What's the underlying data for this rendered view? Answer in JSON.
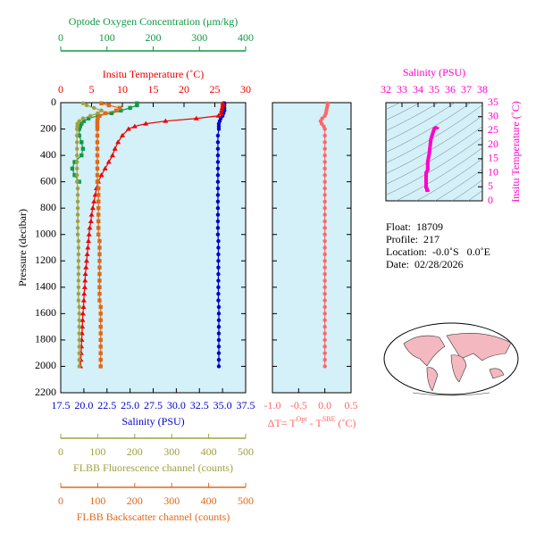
{
  "chart_data": [
    {
      "type": "profile",
      "ylabel": "Pressure (decibar)",
      "ylim": [
        0,
        2200
      ],
      "y_inverted": true,
      "yticks": [
        0,
        200,
        400,
        600,
        800,
        1000,
        1200,
        1400,
        1600,
        1800,
        2000,
        2200
      ],
      "y": [
        5,
        20,
        40,
        60,
        80,
        100,
        120,
        140,
        160,
        180,
        200,
        250,
        300,
        350,
        400,
        450,
        500,
        550,
        600,
        650,
        700,
        750,
        800,
        850,
        900,
        950,
        1000,
        1050,
        1100,
        1150,
        1200,
        1250,
        1300,
        1350,
        1400,
        1450,
        1500,
        1550,
        1600,
        1650,
        1700,
        1750,
        1800,
        1850,
        1900,
        1950,
        2000
      ],
      "xlabel": "Salinity (PSU)",
      "xlim": [
        17.5,
        37.5
      ],
      "xticks": [
        17.5,
        {
          "value": 20,
          "label": "20.0"
        },
        22.5,
        {
          "value": 25,
          "label": "25.0"
        },
        27.5,
        {
          "value": 30,
          "label": "30.0"
        },
        32.5,
        {
          "value": 35,
          "label": "35.0"
        },
        37.5
      ],
      "x2label": "Insitu Temperature (˚C)",
      "x2lim": [
        0,
        30
      ],
      "x2ticks": [
        0,
        5,
        10,
        15,
        20,
        25,
        30
      ],
      "x3label": "Optode Oxygen Concentration (μm/kg)",
      "x3lim": [
        0,
        400
      ],
      "x3ticks": [
        0,
        100,
        200,
        300,
        400
      ],
      "x4label": "FLBB Fluorescence channel (counts)",
      "x4lim": [
        0,
        500
      ],
      "x4ticks": [
        0,
        100,
        200,
        300,
        400,
        500
      ],
      "x5label": "FLBB Backscatter channel (counts)",
      "x5lim": [
        0,
        500
      ],
      "x5ticks": [
        0,
        100,
        200,
        300,
        400,
        500
      ],
      "series": [
        {
          "axis": "x",
          "color": "#0000cc",
          "marker": "circle",
          "values": [
            35.2,
            35.2,
            35.2,
            35.2,
            35.1,
            35.0,
            34.8,
            34.7,
            34.6,
            34.6,
            34.6,
            34.5,
            34.5,
            34.5,
            34.5,
            34.5,
            34.5,
            34.5,
            34.5,
            34.5,
            34.5,
            34.5,
            34.5,
            34.5,
            34.5,
            34.5,
            34.5,
            34.55,
            34.55,
            34.55,
            34.55,
            34.55,
            34.55,
            34.55,
            34.55,
            34.55,
            34.55,
            34.6,
            34.6,
            34.6,
            34.6,
            34.6,
            34.6,
            34.6,
            34.6,
            34.6,
            34.6
          ]
        },
        {
          "axis": "x2",
          "color": "#ee0000",
          "marker": "triangle",
          "values": [
            26.3,
            26.3,
            26.2,
            26.1,
            26.0,
            25.6,
            22.0,
            17.0,
            13.8,
            12.0,
            11.0,
            10.0,
            9.3,
            8.8,
            8.4,
            7.8,
            7.2,
            6.6,
            6.1,
            5.8,
            5.6,
            5.4,
            5.2,
            5.0,
            4.9,
            4.7,
            4.6,
            4.5,
            4.4,
            4.3,
            4.2,
            4.1,
            4.0,
            3.95,
            3.9,
            3.8,
            3.75,
            3.7,
            3.6,
            3.55,
            3.5,
            3.45,
            3.4,
            3.35,
            3.3,
            3.25,
            3.2
          ]
        },
        {
          "axis": "x3",
          "color": "#119944",
          "marker": "square",
          "values": [
            165,
            165,
            150,
            130,
            110,
            80,
            60,
            50,
            45,
            42,
            40,
            40,
            45,
            48,
            45,
            30,
            25,
            30,
            40,
            null,
            null,
            null,
            null,
            null,
            null,
            null,
            null,
            null,
            null,
            null,
            null,
            null,
            null,
            null,
            null,
            null,
            null,
            null,
            null,
            null,
            null,
            null,
            null,
            null,
            null,
            null,
            null
          ]
        },
        {
          "axis": "x4",
          "color": "#a0a040",
          "marker": "circle",
          "values": [
            60,
            70,
            90,
            110,
            100,
            80,
            60,
            50,
            45,
            45,
            44,
            44,
            44,
            44,
            44,
            44,
            44,
            44,
            44,
            46,
            46,
            46,
            46,
            46,
            46,
            46,
            46,
            48,
            48,
            48,
            48,
            48,
            48,
            48,
            48,
            48,
            48,
            50,
            50,
            50,
            50,
            50,
            50,
            50,
            50,
            50,
            50
          ]
        },
        {
          "axis": "x5",
          "color": "#e06818",
          "marker": "square",
          "values": [
            110,
            130,
            160,
            150,
            120,
            105,
            100,
            99,
            99,
            99,
            99,
            99,
            99,
            99,
            99,
            99,
            99,
            99,
            99,
            102,
            102,
            102,
            102,
            102,
            102,
            102,
            102,
            105,
            105,
            105,
            105,
            105,
            105,
            105,
            105,
            105,
            105,
            108,
            108,
            108,
            108,
            108,
            108,
            108,
            108,
            108,
            108
          ]
        }
      ]
    },
    {
      "type": "profile",
      "ylim": [
        0,
        2200
      ],
      "y_inverted": true,
      "ytick_labels": false,
      "yticks": [
        0,
        200,
        400,
        600,
        800,
        1000,
        1200,
        1400,
        1600,
        1800,
        2000,
        2200
      ],
      "y": [
        5,
        20,
        40,
        60,
        80,
        100,
        120,
        140,
        160,
        180,
        200,
        250,
        300,
        350,
        400,
        450,
        500,
        550,
        600,
        650,
        700,
        750,
        800,
        850,
        900,
        950,
        1000,
        1050,
        1100,
        1150,
        1200,
        1250,
        1300,
        1350,
        1400,
        1450,
        1500,
        1550,
        1600,
        1650,
        1700,
        1750,
        1800,
        1850,
        1900,
        1950,
        2000
      ],
      "xlabel": [
        "ΔT= T",
        "Opt",
        " - T",
        "SBE",
        " (˚C)"
      ],
      "xlim": [
        -1.0,
        0.5
      ],
      "xticks": [
        {
          "value": -1,
          "label": "-1.0"
        },
        -0.5,
        {
          "value": 0,
          "label": "0.0"
        },
        0.5
      ],
      "series": [
        {
          "axis": "x",
          "color": "#ff6666",
          "marker": "circle",
          "values": [
            0.05,
            0.05,
            0.04,
            0.03,
            0.02,
            0.0,
            -0.05,
            -0.08,
            -0.06,
            -0.02,
            0.0,
            0,
            0,
            0,
            0,
            0,
            0,
            0,
            0,
            0,
            0,
            0,
            0,
            0,
            0,
            0,
            0,
            0,
            0,
            0,
            0,
            0,
            0,
            0,
            0,
            0,
            0,
            0,
            0,
            0,
            0,
            0,
            0,
            0,
            0,
            0,
            0
          ]
        }
      ]
    },
    {
      "type": "ts",
      "color": "#ff00cc",
      "xlabel": "Salinity (PSU)",
      "xlim": [
        32,
        38
      ],
      "xticks": [
        32,
        33,
        34,
        35,
        36,
        37,
        38
      ],
      "ylabel": "Insitu Temperature (˚C)",
      "ylim": [
        0,
        35
      ],
      "yticks": [
        0,
        5,
        10,
        15,
        20,
        25,
        30,
        35
      ]
    }
  ],
  "info": [
    "Float:  18709",
    "Profile:  217",
    "Location:  -0.0˚S   0.0˚E",
    "Date:  02/28/2026"
  ]
}
